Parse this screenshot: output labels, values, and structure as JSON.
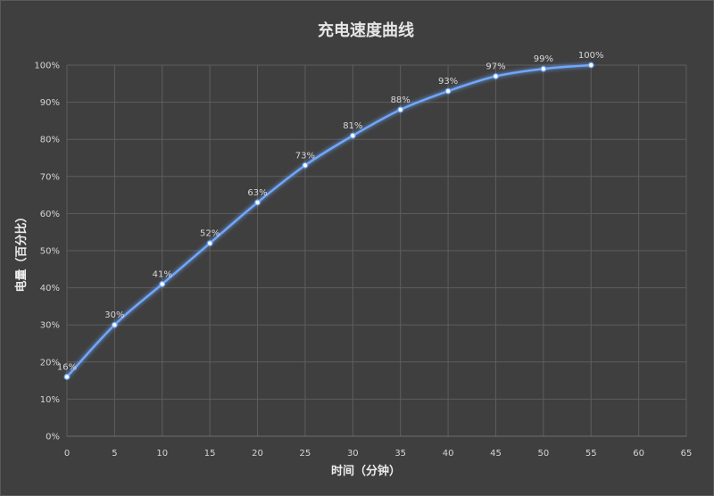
{
  "chart_data": {
    "type": "line",
    "title": "充电速度曲线",
    "xlabel": "时间（分钟）",
    "ylabel": "电量（百分比）",
    "xlim": [
      0,
      65
    ],
    "ylim": [
      0,
      100
    ],
    "x_ticks": [
      "0",
      "5",
      "10",
      "15",
      "20",
      "25",
      "30",
      "35",
      "40",
      "45",
      "50",
      "55",
      "60",
      "65"
    ],
    "y_ticks": [
      "0%",
      "10%",
      "20%",
      "30%",
      "40%",
      "50%",
      "60%",
      "70%",
      "80%",
      "90%",
      "100%"
    ],
    "grid": true,
    "smooth": true,
    "line_color": "#6fa8ff",
    "series": [
      {
        "x": [
          0,
          5,
          10,
          15,
          20,
          25,
          30,
          35,
          40,
          45,
          50,
          55
        ],
        "values": [
          16,
          30,
          41,
          52,
          63,
          73,
          81,
          88,
          93,
          97,
          99,
          100
        ],
        "labels": [
          "16%",
          "30%",
          "41%",
          "52%",
          "63%",
          "73%",
          "81%",
          "88%",
          "93%",
          "97%",
          "99%",
          "100%"
        ]
      }
    ]
  }
}
